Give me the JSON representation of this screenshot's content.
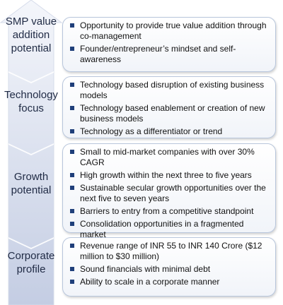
{
  "sections": [
    {
      "label": "SMP value\naddition\npotential",
      "bullets": [
        "Opportunity to provide true value addition through co-management",
        "Founder/entrepreneur’s mindset and self-awareness"
      ]
    },
    {
      "label": "Technology\nfocus",
      "bullets": [
        "Technology based disruption of existing business models",
        "Technology based enablement or creation of new business models",
        "Technology as a differentiator or trend"
      ]
    },
    {
      "label": "Growth\npotential",
      "bullets": [
        "Small to mid-market companies with over 30% CAGR",
        "High growth within the next three to five years",
        "Sustainable secular growth opportunities over the next five to seven years",
        "Barriers to entry from a competitive standpoint",
        "Consolidation opportunities in a fragmented market"
      ]
    },
    {
      "label": "Corporate\nprofile",
      "bullets": [
        "Revenue range of INR 55 to INR 140  Crore ($12 million to  $30  million)",
        "Sound financials with minimal debt",
        "Ability to scale in a corporate manner"
      ]
    }
  ]
}
